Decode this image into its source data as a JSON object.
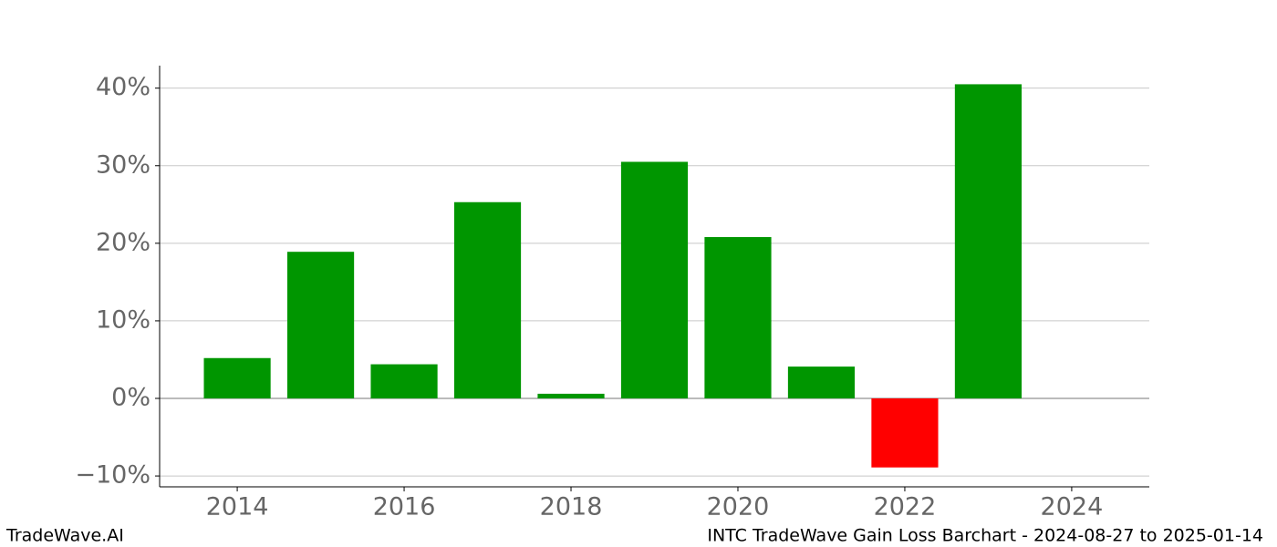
{
  "chart_data": {
    "type": "bar",
    "x": [
      2014,
      2015,
      2016,
      2017,
      2018,
      2019,
      2020,
      2021,
      2022,
      2023
    ],
    "values": [
      5.2,
      18.9,
      4.4,
      25.3,
      0.6,
      30.5,
      20.8,
      4.1,
      -8.9,
      40.5
    ],
    "colors": [
      "#009600",
      "#009600",
      "#009600",
      "#009600",
      "#009600",
      "#009600",
      "#009600",
      "#009600",
      "#ff0000",
      "#009600"
    ],
    "xlim": [
      2013.07,
      2024.93
    ],
    "xticks": [
      2014,
      2016,
      2018,
      2020,
      2022,
      2024
    ],
    "ylim": [
      -11.4,
      42.9
    ],
    "yticks": [
      {
        "value": -10,
        "label": "−10%"
      },
      {
        "value": 0,
        "label": "0%"
      },
      {
        "value": 10,
        "label": "10%"
      },
      {
        "value": 20,
        "label": "20%"
      },
      {
        "value": 30,
        "label": "30%"
      },
      {
        "value": 40,
        "label": "40%"
      }
    ],
    "grid": true
  },
  "footer": {
    "left": "TradeWave.AI",
    "right": "INTC TradeWave Gain Loss Barchart - 2024-08-27 to 2025-01-14"
  }
}
